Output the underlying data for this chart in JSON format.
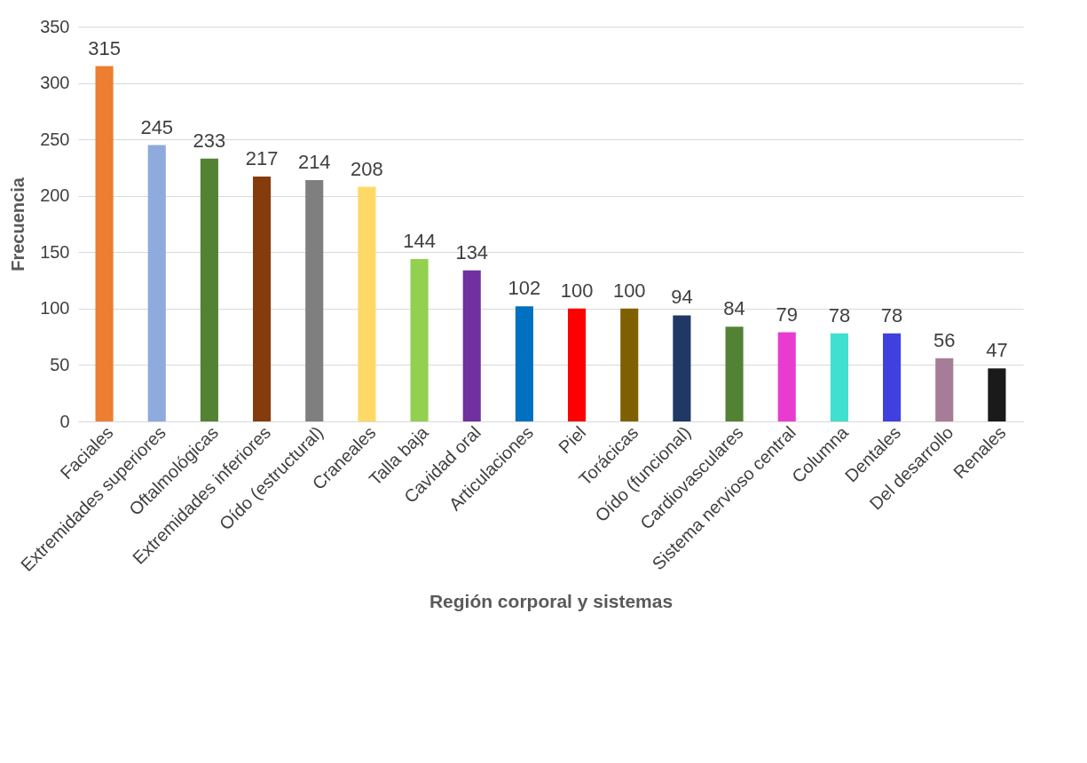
{
  "chart_data": {
    "type": "bar",
    "xlabel": "Región corporal y sistemas",
    "ylabel": "Frecuencia",
    "categories": [
      "Faciales",
      "Extremidades superiores",
      "Oftalmológicas",
      "Extremidades inferiores",
      "Oído (estructural)",
      "Craneales",
      "Talla baja",
      "Cavidad oral",
      "Articulaciones",
      "Piel",
      "Torácicas",
      "Oído (funcional)",
      "Cardiovasculares",
      "Sistema nervioso central",
      "Columna",
      "Dentales",
      "Del desarrollo",
      "Renales"
    ],
    "values": [
      315,
      245,
      233,
      217,
      214,
      208,
      144,
      134,
      102,
      100,
      100,
      94,
      84,
      79,
      78,
      78,
      56,
      47
    ],
    "colors": [
      "#ed7d31",
      "#8faadc",
      "#548235",
      "#843c0c",
      "#7f7f7f",
      "#ffd966",
      "#92d050",
      "#7030a0",
      "#0070c0",
      "#ff0000",
      "#7f6000",
      "#203864",
      "#548235",
      "#e83cd0",
      "#40e0d0",
      "#4040e0",
      "#a67d96",
      "#1a1a1a"
    ],
    "ylim": [
      0,
      350
    ],
    "yticks": [
      0,
      50,
      100,
      150,
      200,
      250,
      300,
      350
    ],
    "grid": "y",
    "data_labels": true
  }
}
